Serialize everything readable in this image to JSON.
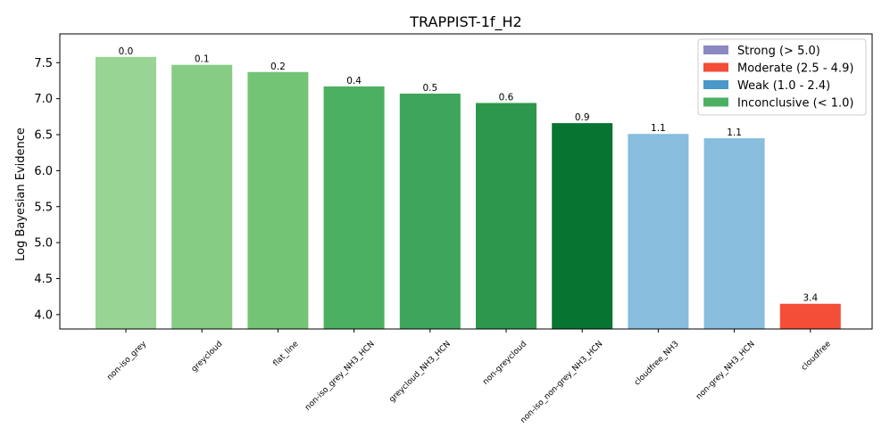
{
  "chart_data": {
    "type": "bar",
    "title": "TRAPPIST-1f_H2",
    "xlabel": "",
    "ylabel": "Log Bayesian Evidence",
    "ylim": [
      3.8,
      7.9
    ],
    "yticks": [
      4.0,
      4.5,
      5.0,
      5.5,
      6.0,
      6.5,
      7.0,
      7.5
    ],
    "categories": [
      "non-iso_grey",
      "greycloud",
      "flat_line",
      "non-iso_grey_NH3_HCN",
      "greycloud_NH3_HCN",
      "non-greycloud",
      "non-iso_non-grey_NH3_HCN",
      "cloudfree_NH3",
      "non-grey_NH3_HCN",
      "cloudfree"
    ],
    "values": [
      7.58,
      7.47,
      7.37,
      7.17,
      7.07,
      6.94,
      6.66,
      6.51,
      6.45,
      4.15
    ],
    "bar_labels": [
      "0.0",
      "0.1",
      "0.2",
      "0.4",
      "0.5",
      "0.6",
      "0.9",
      "1.1",
      "1.1",
      "3.4"
    ],
    "bar_colors": [
      "#98d494",
      "#86cc85",
      "#74c476",
      "#4bb062",
      "#3ea55c",
      "#2e974e",
      "#087432",
      "#88bddd",
      "#88bddd",
      "#f44d38"
    ],
    "legend": {
      "placement": "top-right",
      "entries": [
        {
          "label": "Strong (> 5.0)",
          "color": "#8b88c2"
        },
        {
          "label": "Moderate (2.5 - 4.9)",
          "color": "#f44d38"
        },
        {
          "label": "Weak (1.0 - 2.4)",
          "color": "#4a97c9"
        },
        {
          "label": "Inconclusive (< 1.0)",
          "color": "#4bb062"
        }
      ]
    },
    "grid": false
  }
}
